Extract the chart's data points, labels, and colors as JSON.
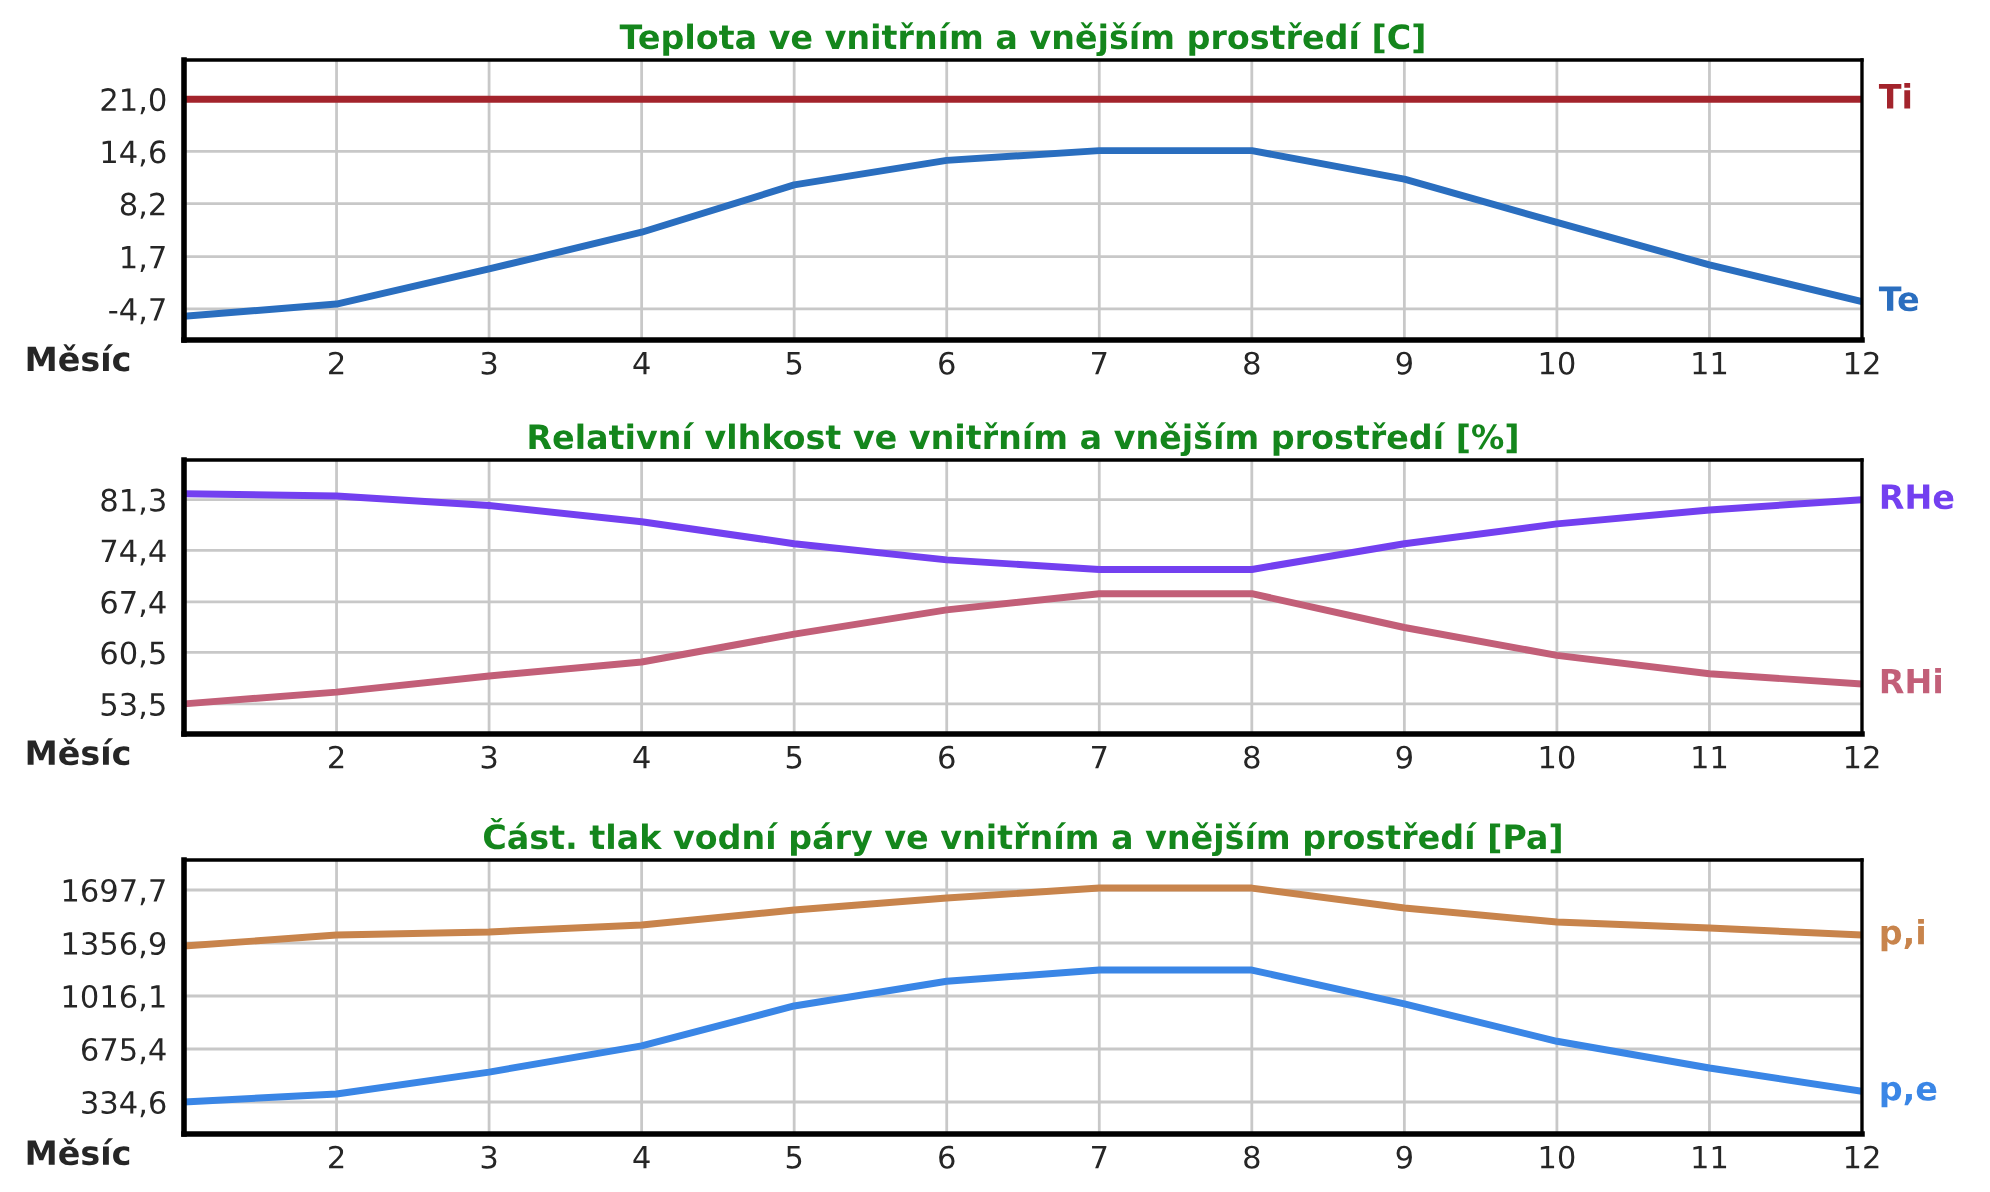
{
  "chart_data": [
    {
      "type": "line",
      "title": "Teplota ve vnitřním a vnějším prostředí [C]",
      "xlabel": "Měsíc",
      "x": [
        1,
        2,
        3,
        4,
        5,
        6,
        7,
        8,
        9,
        10,
        11,
        12
      ],
      "xlim": [
        1,
        12
      ],
      "xticks": [
        2,
        3,
        4,
        5,
        6,
        7,
        8,
        9,
        10,
        11,
        12
      ],
      "ylim": [
        -8.5,
        25.8
      ],
      "yticks": [
        {
          "value": -4.7,
          "label": "-4,7"
        },
        {
          "value": 1.7,
          "label": "1,7"
        },
        {
          "value": 8.2,
          "label": "8,2"
        },
        {
          "value": 14.6,
          "label": "14,6"
        },
        {
          "value": 21.0,
          "label": "21,0"
        }
      ],
      "grid": true,
      "legend": false,
      "marker": "none",
      "line_style": "solid",
      "series": [
        {
          "name": "Ti",
          "color": "#a3242c",
          "values": [
            21.0,
            21.0,
            21.0,
            21.0,
            21.0,
            21.0,
            21.0,
            21.0,
            21.0,
            21.0,
            21.0,
            21.0
          ]
        },
        {
          "name": "Te",
          "color": "#2a6ebf",
          "values": [
            -5.6,
            -4.1,
            0.2,
            4.7,
            10.5,
            13.5,
            14.7,
            14.7,
            11.2,
            5.9,
            0.7,
            -3.8
          ]
        }
      ]
    },
    {
      "type": "line",
      "title": "Relativní vlhkost ve vnitřním a vnějším prostředí [%]",
      "xlabel": "Měsíc",
      "x": [
        1,
        2,
        3,
        4,
        5,
        6,
        7,
        8,
        9,
        10,
        11,
        12
      ],
      "xlim": [
        1,
        12
      ],
      "xticks": [
        2,
        3,
        4,
        5,
        6,
        7,
        8,
        9,
        10,
        11,
        12
      ],
      "ylim": [
        49.4,
        86.7
      ],
      "yticks": [
        {
          "value": 53.5,
          "label": "53,5"
        },
        {
          "value": 60.5,
          "label": "60,5"
        },
        {
          "value": 67.4,
          "label": "67,4"
        },
        {
          "value": 74.4,
          "label": "74,4"
        },
        {
          "value": 81.3,
          "label": "81,3"
        }
      ],
      "grid": true,
      "legend": false,
      "marker": "none",
      "line_style": "solid",
      "series": [
        {
          "name": "RHe",
          "color": "#7340f0",
          "values": [
            82.1,
            81.8,
            80.5,
            78.3,
            75.3,
            73.1,
            71.8,
            71.8,
            75.3,
            78.0,
            79.9,
            81.3
          ]
        },
        {
          "name": "RHi",
          "color": "#c25f78",
          "values": [
            53.5,
            55.1,
            57.3,
            59.2,
            63.0,
            66.3,
            68.5,
            68.5,
            63.9,
            60.1,
            57.6,
            56.2
          ]
        }
      ]
    },
    {
      "type": "line",
      "title": "Část. tlak vodní páry ve vnitřním a vnějším prostředí [Pa]",
      "xlabel": "Měsíc",
      "x": [
        1,
        2,
        3,
        4,
        5,
        6,
        7,
        8,
        9,
        10,
        11,
        12
      ],
      "xlim": [
        1,
        12
      ],
      "xticks": [
        2,
        3,
        4,
        5,
        6,
        7,
        8,
        9,
        10,
        11,
        12
      ],
      "ylim": [
        128.8,
        1890.6
      ],
      "yticks": [
        {
          "value": 334.6,
          "label": "334,6"
        },
        {
          "value": 675.4,
          "label": "675,4"
        },
        {
          "value": 1016.1,
          "label": "1016,1"
        },
        {
          "value": 1356.9,
          "label": "1356,9"
        },
        {
          "value": 1697.7,
          "label": "1697,7"
        }
      ],
      "grid": true,
      "legend": false,
      "marker": "none",
      "line_style": "solid",
      "series": [
        {
          "name": "p,i",
          "color": "#c8844c",
          "values": [
            1337,
            1408,
            1428,
            1473,
            1569,
            1646,
            1710,
            1710,
            1582,
            1492,
            1453,
            1408
          ]
        },
        {
          "name": "p,e",
          "color": "#3a86e6",
          "values": [
            334.6,
            386,
            527,
            695,
            952,
            1111,
            1183,
            1183,
            965,
            725,
            553,
            404
          ]
        }
      ]
    }
  ]
}
